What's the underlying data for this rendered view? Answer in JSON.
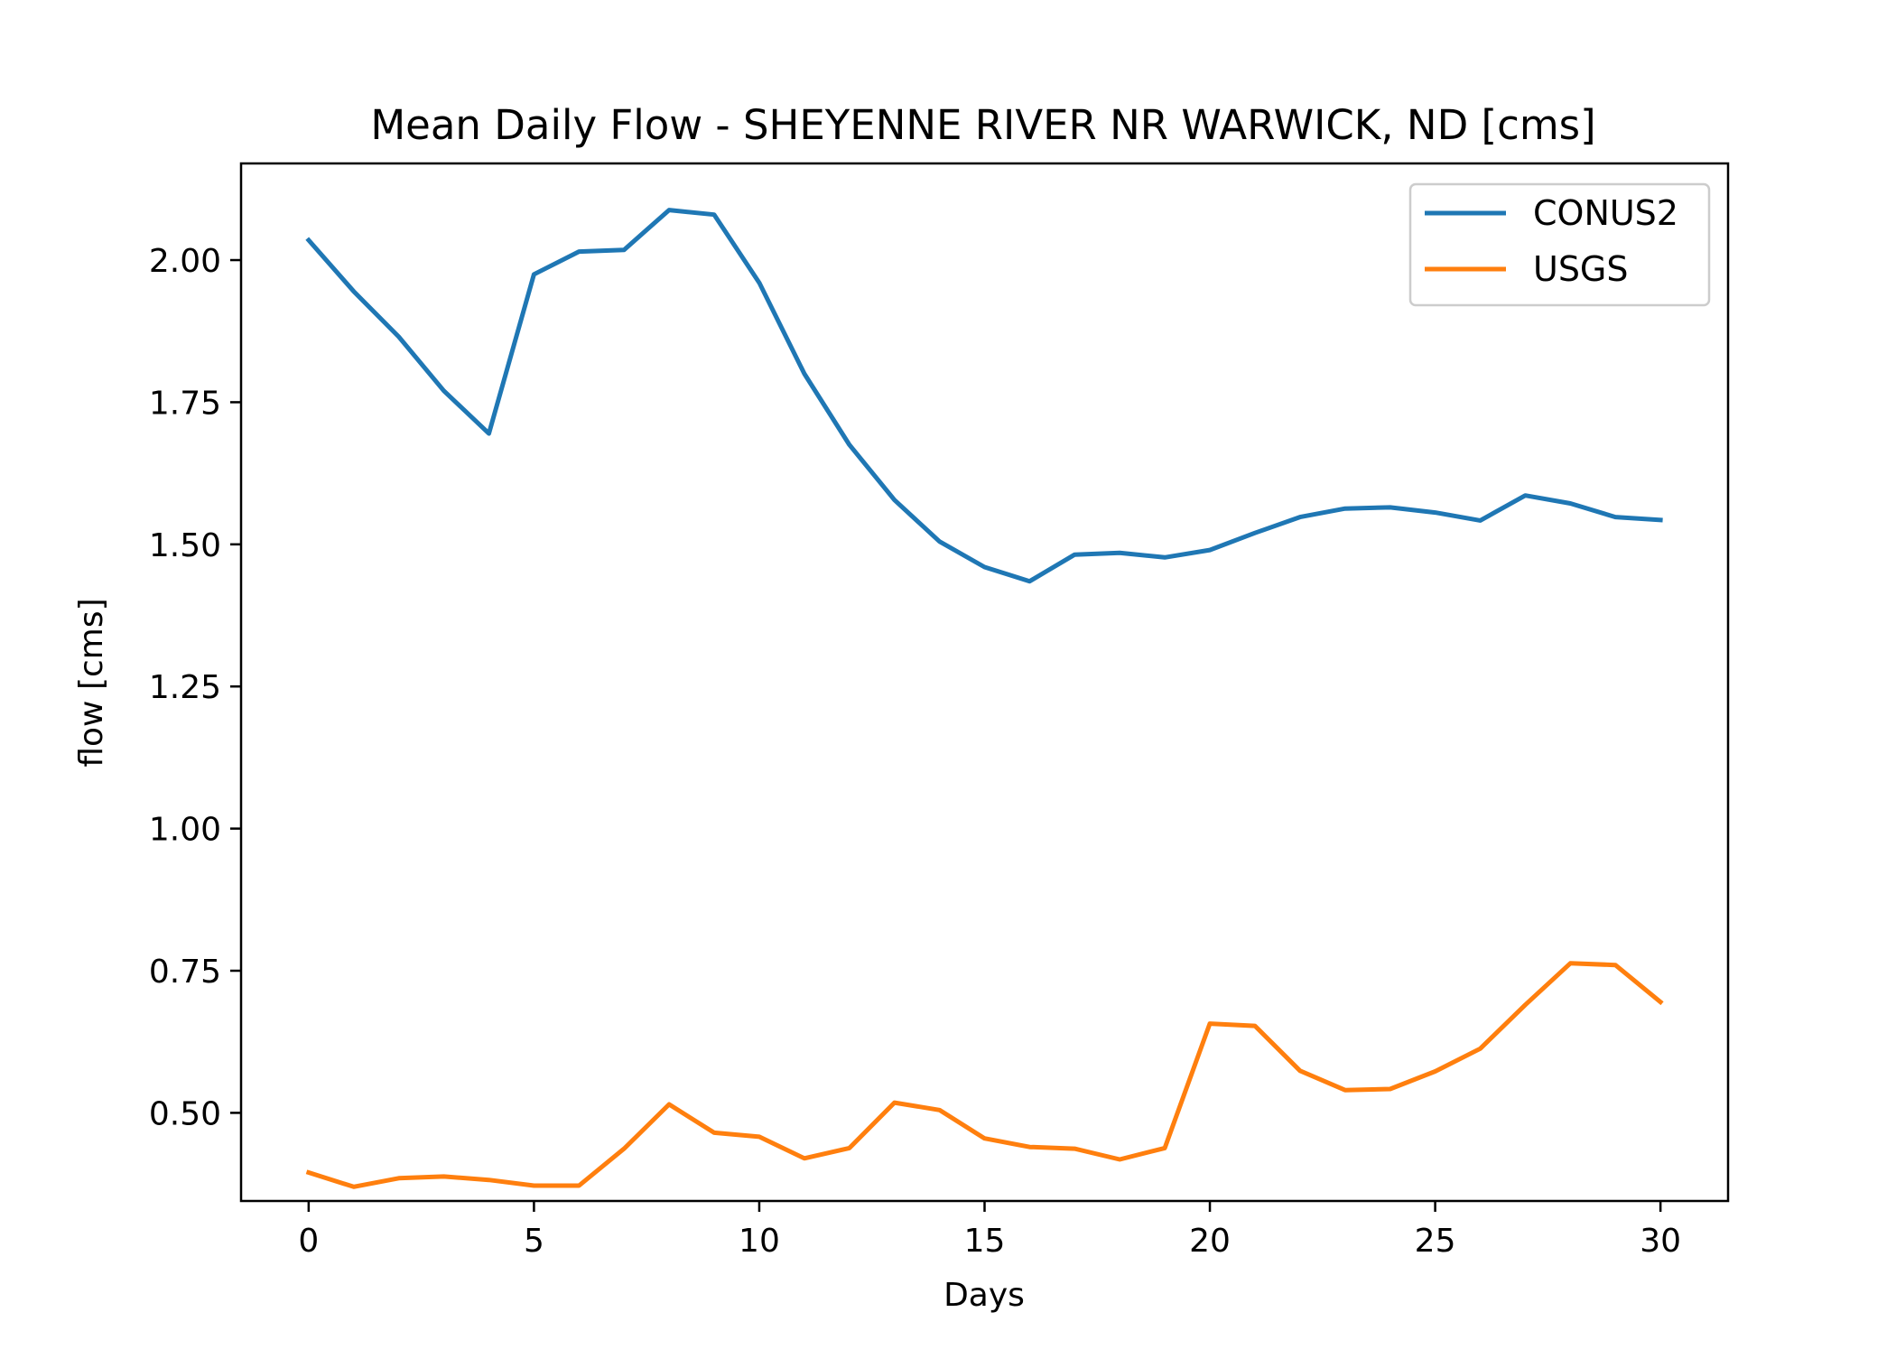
{
  "chart_data": {
    "type": "line",
    "title": "Mean Daily Flow - SHEYENNE RIVER NR WARWICK, ND [cms]",
    "xlabel": "Days",
    "ylabel": "flow [cms]",
    "xlim": [
      -1.5,
      31.5
    ],
    "ylim": [
      0.345,
      2.17
    ],
    "xticks": [
      0,
      5,
      10,
      15,
      20,
      25,
      30
    ],
    "xtick_labels": [
      "0",
      "5",
      "10",
      "15",
      "20",
      "25",
      "30"
    ],
    "yticks": [
      0.5,
      0.75,
      1.0,
      1.25,
      1.5,
      1.75,
      2.0
    ],
    "ytick_labels": [
      "0.50",
      "0.75",
      "1.00",
      "1.25",
      "1.50",
      "1.75",
      "2.00"
    ],
    "grid": false,
    "legend_position": "top-right",
    "x": [
      0,
      1,
      2,
      3,
      4,
      5,
      6,
      7,
      8,
      9,
      10,
      11,
      12,
      13,
      14,
      15,
      16,
      17,
      18,
      19,
      20,
      21,
      22,
      23,
      24,
      25,
      26,
      27,
      28,
      29,
      30
    ],
    "series": [
      {
        "name": "CONUS2",
        "color": "#1f77b4",
        "values": [
          2.035,
          1.945,
          1.865,
          1.77,
          1.695,
          1.975,
          2.015,
          2.018,
          2.088,
          2.08,
          1.96,
          1.8,
          1.675,
          1.578,
          1.505,
          1.46,
          1.435,
          1.482,
          1.485,
          1.477,
          1.49,
          1.52,
          1.548,
          1.563,
          1.565,
          1.556,
          1.542,
          1.586,
          1.572,
          1.548,
          1.543
        ]
      },
      {
        "name": "USGS",
        "color": "#ff7f0e",
        "values": [
          0.395,
          0.37,
          0.385,
          0.388,
          0.382,
          0.372,
          0.372,
          0.437,
          0.515,
          0.465,
          0.458,
          0.42,
          0.438,
          0.518,
          0.505,
          0.455,
          0.44,
          0.437,
          0.418,
          0.438,
          0.657,
          0.653,
          0.574,
          0.54,
          0.542,
          0.573,
          0.613,
          0.69,
          0.763,
          0.76,
          0.695
        ]
      }
    ]
  }
}
